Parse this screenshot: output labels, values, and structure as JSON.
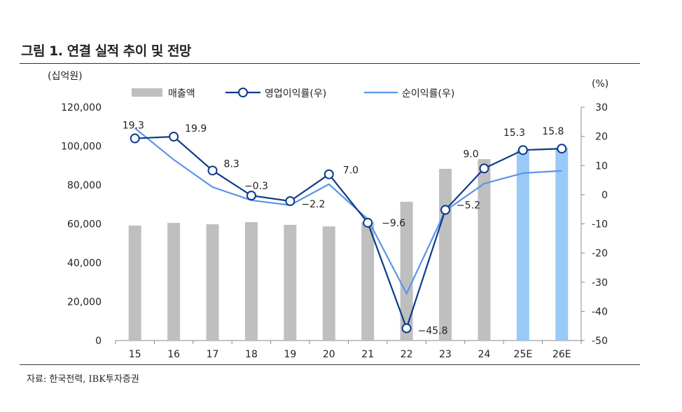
{
  "title": "그림 1. 연결 실적 추이 및 전망",
  "source": "자료: 한국전력, IBK투자증권",
  "chart_data": {
    "type": "bar+line",
    "left_unit": "(십억원)",
    "right_unit": "(%)",
    "categories": [
      "15",
      "16",
      "17",
      "18",
      "19",
      "20",
      "21",
      "22",
      "23",
      "24",
      "25E",
      "26E"
    ],
    "left_axis": {
      "range": [
        0,
        120000
      ],
      "ticks": [
        "0",
        "20,000",
        "40,000",
        "60,000",
        "80,000",
        "100,000",
        "120,000"
      ]
    },
    "right_axis": {
      "range": [
        -50,
        30
      ],
      "ticks": [
        "-50",
        "-40",
        "-30",
        "-20",
        "-10",
        "0",
        "10",
        "20",
        "30"
      ]
    },
    "series": [
      {
        "name": "매출액",
        "type": "bar",
        "axis": "left",
        "color": "#bfbfbf",
        "forecast_color": "#99c9f7",
        "values": [
          59100,
          60500,
          59800,
          60900,
          59500,
          58700,
          60900,
          71400,
          88300,
          93300,
          98000,
          99100
        ]
      },
      {
        "name": "영업이익률(우)",
        "type": "line",
        "axis": "right",
        "color": "#0d3a8a",
        "marker": "circle",
        "values": [
          19.3,
          19.9,
          8.3,
          -0.3,
          -2.2,
          7.0,
          -9.6,
          -45.8,
          -5.2,
          9.0,
          15.3,
          15.8
        ],
        "labels": [
          "19.3",
          "19.9",
          "8.3",
          "−0.3",
          "−2.2",
          "7.0",
          "−9.6",
          "−45.8",
          "−5.2",
          "9.0",
          "15.3",
          "15.8"
        ]
      },
      {
        "name": "순이익률(우)",
        "type": "line",
        "axis": "right",
        "color": "#5b95e8",
        "values": [
          22.8,
          12.0,
          2.6,
          -1.9,
          -3.6,
          3.6,
          -8.4,
          -33.9,
          -5.5,
          3.8,
          7.4,
          8.2
        ]
      }
    ],
    "legend_position": "top",
    "grid": false
  }
}
